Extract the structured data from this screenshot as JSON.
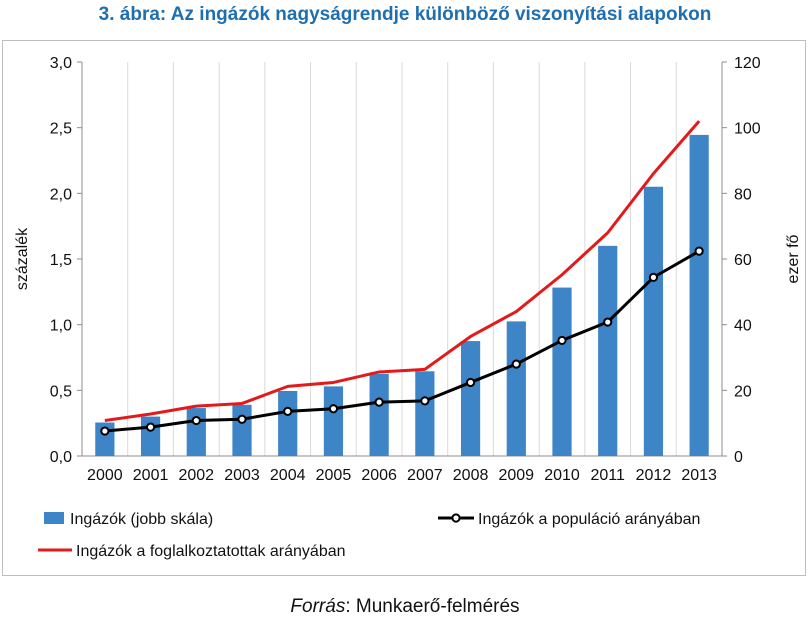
{
  "chart_data": {
    "type": "bar",
    "title": "3. ábra: Az ingázók nagyságrendje különböző viszonyítási alapokon",
    "categories": [
      "2000",
      "2001",
      "2002",
      "2003",
      "2004",
      "2005",
      "2006",
      "2007",
      "2008",
      "2009",
      "2010",
      "2011",
      "2012",
      "2013"
    ],
    "ylabel_left": "százalék",
    "ylabel_right": "ezer fő",
    "ylim_left": [
      0,
      3.0
    ],
    "ylim_right": [
      0,
      120
    ],
    "yticks_left": [
      "0,0",
      "0,5",
      "1,0",
      "1,5",
      "2,0",
      "2,5",
      "3,0"
    ],
    "yticks_right": [
      "0",
      "20",
      "40",
      "60",
      "80",
      "100",
      "120"
    ],
    "series": [
      {
        "name": "Ingázók (jobb skála)",
        "type": "bar",
        "axis": "right",
        "color": "#3d85c6",
        "values": [
          10.2,
          12.0,
          14.6,
          15.6,
          19.8,
          21.2,
          25.0,
          25.8,
          35.0,
          41.0,
          51.3,
          64.0,
          82.0,
          97.8
        ]
      },
      {
        "name": "Ingázók a populáció arányában",
        "type": "line",
        "axis": "left",
        "color": "#000000",
        "values": [
          0.19,
          0.22,
          0.27,
          0.28,
          0.34,
          0.36,
          0.41,
          0.42,
          0.56,
          0.7,
          0.88,
          1.02,
          1.36,
          1.56
        ]
      },
      {
        "name": "Ingázók a foglalkoztatottak arányában",
        "type": "line",
        "axis": "left",
        "color": "#e31a1c",
        "values": [
          0.27,
          0.32,
          0.38,
          0.4,
          0.53,
          0.56,
          0.64,
          0.66,
          0.91,
          1.1,
          1.38,
          1.7,
          2.15,
          2.55
        ]
      }
    ],
    "grid": "vertical",
    "legend": "bottom"
  },
  "source": {
    "label": "Forrás",
    "text": ": Munkaerő-felmérés"
  }
}
